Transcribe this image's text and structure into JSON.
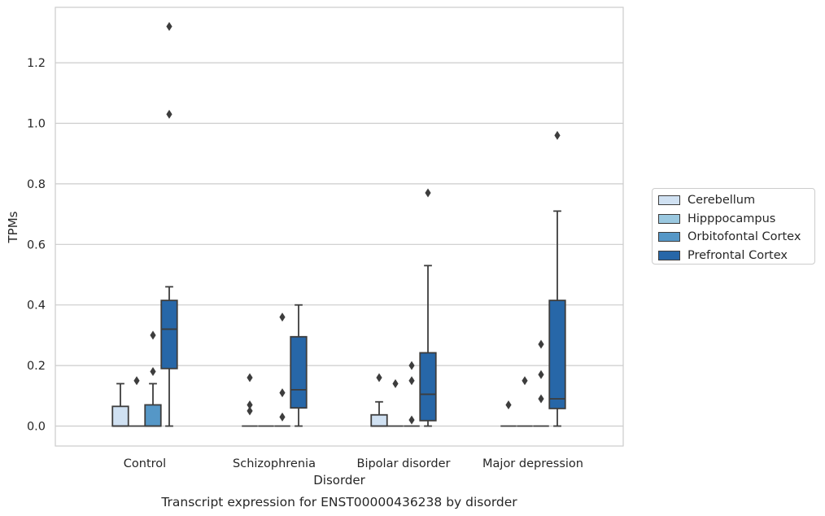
{
  "chart_data": {
    "type": "boxplot",
    "title": "Transcript expression for ENST00000436238 by disorder",
    "xlabel": "Disorder",
    "ylabel": "TPMs",
    "ylim": [
      -0.065,
      1.38
    ],
    "yticks": [
      "0.0",
      "0.2",
      "0.4",
      "0.6",
      "0.8",
      "1.0",
      "1.2"
    ],
    "grid": "horizontal",
    "legend_placement": "right, outside plot area",
    "categories": [
      "Control",
      "Schizophrenia",
      "Bipolar disorder",
      "Major depression"
    ],
    "series": [
      {
        "name": "Cerebellum",
        "color": "#d0e1f2",
        "boxes": [
          {
            "whislo": 0.0,
            "q1": 0.0,
            "med": 0.0,
            "q3": 0.065,
            "whishi": 0.14,
            "fliers": []
          },
          {
            "whislo": 0.0,
            "q1": 0.0,
            "med": 0.0,
            "q3": 0.0,
            "whishi": 0.0,
            "fliers": [
              0.05,
              0.07,
              0.16
            ]
          },
          {
            "whislo": 0.0,
            "q1": 0.0,
            "med": 0.0,
            "q3": 0.037,
            "whishi": 0.08,
            "fliers": [
              0.16
            ]
          },
          {
            "whislo": 0.0,
            "q1": 0.0,
            "med": 0.0,
            "q3": 0.0,
            "whishi": 0.0,
            "fliers": [
              0.07
            ]
          }
        ]
      },
      {
        "name": "Hipppocampus",
        "color": "#9ac8e0",
        "boxes": [
          {
            "whislo": 0.0,
            "q1": 0.0,
            "med": 0.0,
            "q3": 0.0,
            "whishi": 0.0,
            "fliers": [
              0.15
            ]
          },
          {
            "whislo": 0.0,
            "q1": 0.0,
            "med": 0.0,
            "q3": 0.0,
            "whishi": 0.0,
            "fliers": []
          },
          {
            "whislo": 0.0,
            "q1": 0.0,
            "med": 0.0,
            "q3": 0.0,
            "whishi": 0.0,
            "fliers": [
              0.14
            ]
          },
          {
            "whislo": 0.0,
            "q1": 0.0,
            "med": 0.0,
            "q3": 0.0,
            "whishi": 0.0,
            "fliers": [
              0.15
            ]
          }
        ]
      },
      {
        "name": "Orbitofontal Cortex",
        "color": "#5597c7",
        "boxes": [
          {
            "whislo": 0.0,
            "q1": 0.0,
            "med": 0.0,
            "q3": 0.07,
            "whishi": 0.14,
            "fliers": [
              0.18,
              0.3
            ]
          },
          {
            "whislo": 0.0,
            "q1": 0.0,
            "med": 0.0,
            "q3": 0.0,
            "whishi": 0.0,
            "fliers": [
              0.03,
              0.11,
              0.36
            ]
          },
          {
            "whislo": 0.0,
            "q1": 0.0,
            "med": 0.0,
            "q3": 0.0,
            "whishi": 0.0,
            "fliers": [
              0.02,
              0.15,
              0.2
            ]
          },
          {
            "whislo": 0.0,
            "q1": 0.0,
            "med": 0.0,
            "q3": 0.0,
            "whishi": 0.0,
            "fliers": [
              0.09,
              0.17,
              0.27
            ]
          }
        ]
      },
      {
        "name": "Prefrontal Cortex",
        "color": "#2767a8",
        "boxes": [
          {
            "whislo": 0.0,
            "q1": 0.19,
            "med": 0.32,
            "q3": 0.415,
            "whishi": 0.46,
            "fliers": [
              1.03,
              1.32
            ]
          },
          {
            "whislo": 0.0,
            "q1": 0.06,
            "med": 0.12,
            "q3": 0.295,
            "whishi": 0.4,
            "fliers": []
          },
          {
            "whislo": 0.0,
            "q1": 0.018,
            "med": 0.105,
            "q3": 0.242,
            "whishi": 0.53,
            "fliers": [
              0.77
            ]
          },
          {
            "whislo": 0.0,
            "q1": 0.058,
            "med": 0.09,
            "q3": 0.415,
            "whishi": 0.71,
            "fliers": [
              0.96
            ]
          }
        ]
      }
    ]
  }
}
